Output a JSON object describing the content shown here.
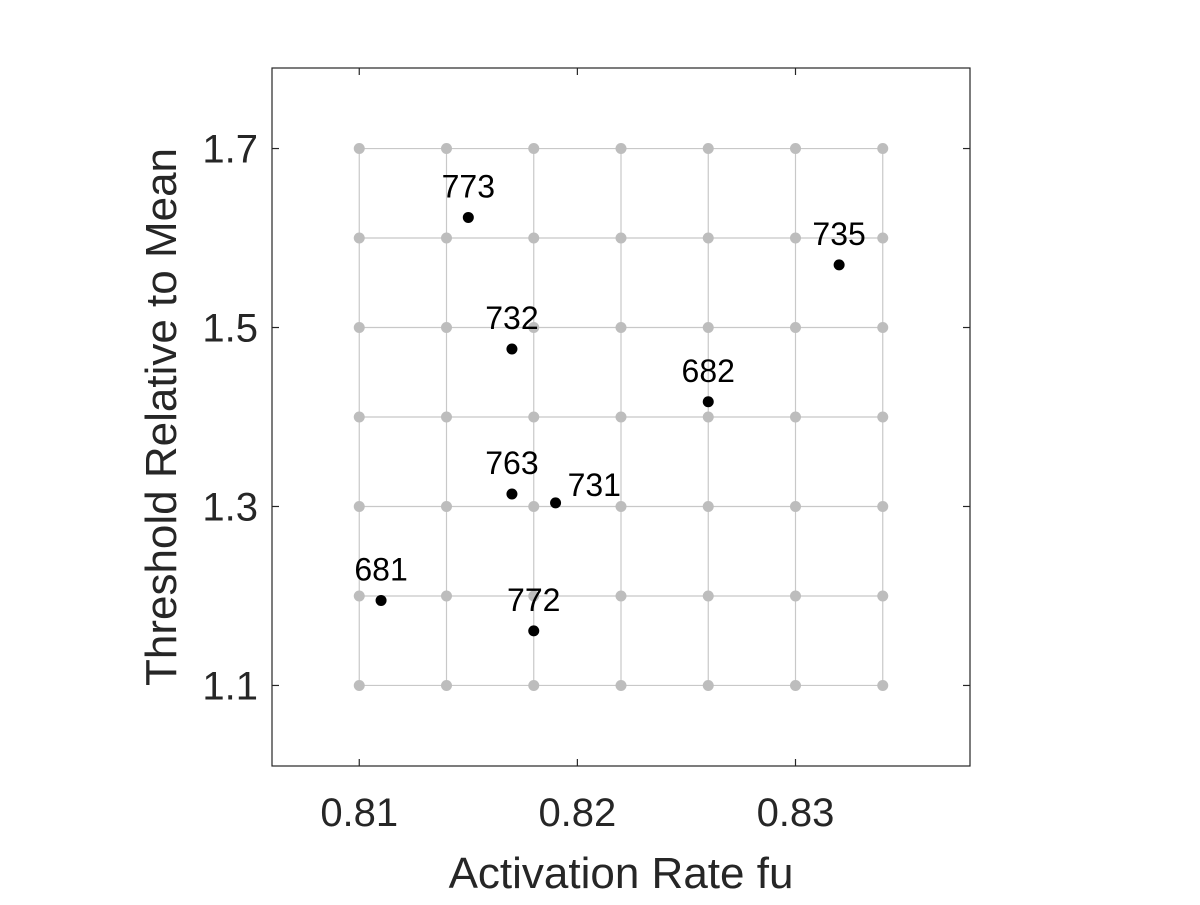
{
  "chart_data": {
    "type": "scatter",
    "title": "",
    "xlabel": "Activation Rate fu",
    "ylabel": "Threshold Relative to Mean",
    "xlim": [
      0.806,
      0.838
    ],
    "ylim": [
      1.01,
      1.79
    ],
    "xticks": [
      0.81,
      0.82,
      0.83
    ],
    "xtick_labels": [
      "0.81",
      "0.82",
      "0.83"
    ],
    "yticks": [
      1.1,
      1.3,
      1.5,
      1.7
    ],
    "ytick_labels": [
      "1.1",
      "1.3",
      "1.5",
      "1.7"
    ],
    "grid": {
      "x": [
        0.81,
        0.814,
        0.818,
        0.822,
        0.826,
        0.83,
        0.834
      ],
      "y": [
        1.1,
        1.2,
        1.3,
        1.4,
        1.5,
        1.6,
        1.7
      ],
      "shown": true
    },
    "points": [
      {
        "label": "773",
        "x": 0.815,
        "y": 1.623
      },
      {
        "label": "735",
        "x": 0.832,
        "y": 1.57
      },
      {
        "label": "732",
        "x": 0.817,
        "y": 1.476
      },
      {
        "label": "682",
        "x": 0.826,
        "y": 1.417
      },
      {
        "label": "763",
        "x": 0.817,
        "y": 1.314
      },
      {
        "label": "731",
        "x": 0.819,
        "y": 1.304
      },
      {
        "label": "681",
        "x": 0.811,
        "y": 1.195
      },
      {
        "label": "772",
        "x": 0.818,
        "y": 1.161
      }
    ]
  },
  "colors": {
    "grid_line": "#c8c8c8",
    "grid_node": "#bdbdbd",
    "point": "#000000",
    "axes_box": "#262626"
  }
}
